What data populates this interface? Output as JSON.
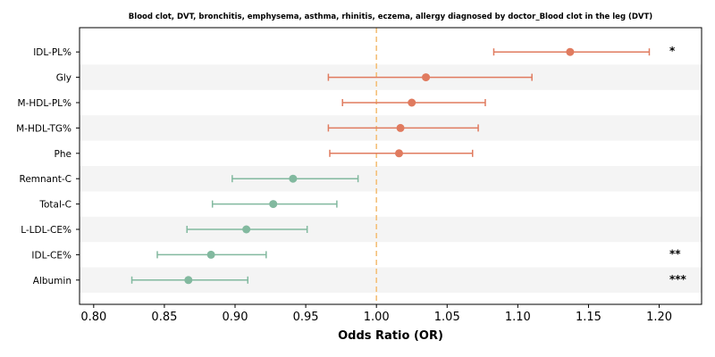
{
  "chart_data": {
    "type": "forest",
    "title": "Blood clot, DVT, bronchitis, emphysema, asthma, rhinitis, eczema, allergy diagnosed by doctor_Blood clot in the leg (DVT)",
    "xlabel": "Odds Ratio (OR)",
    "xlim": [
      0.79,
      1.23
    ],
    "xticks": [
      0.8,
      0.85,
      0.9,
      0.95,
      1.0,
      1.05,
      1.1,
      1.15,
      1.2
    ],
    "xtick_labels": [
      "0.80",
      "0.85",
      "0.90",
      "0.95",
      "1.00",
      "1.05",
      "1.10",
      "1.15",
      "1.20"
    ],
    "reference_line": 1.0,
    "colors": {
      "positive": "#e07b5f",
      "negative": "#82b99f",
      "reference": "#f4c07a",
      "band": "#f4f4f4"
    },
    "rows": [
      {
        "label": "IDL-PL%",
        "or": 1.137,
        "lower": 1.083,
        "upper": 1.193,
        "sig": "*"
      },
      {
        "label": "Gly",
        "or": 1.035,
        "lower": 0.966,
        "upper": 1.11,
        "sig": ""
      },
      {
        "label": "M-HDL-PL%",
        "or": 1.025,
        "lower": 0.976,
        "upper": 1.077,
        "sig": ""
      },
      {
        "label": "M-HDL-TG%",
        "or": 1.017,
        "lower": 0.966,
        "upper": 1.072,
        "sig": ""
      },
      {
        "label": "Phe",
        "or": 1.016,
        "lower": 0.967,
        "upper": 1.068,
        "sig": ""
      },
      {
        "label": "Remnant-C",
        "or": 0.941,
        "lower": 0.898,
        "upper": 0.987,
        "sig": ""
      },
      {
        "label": "Total-C",
        "or": 0.927,
        "lower": 0.884,
        "upper": 0.972,
        "sig": ""
      },
      {
        "label": "L-LDL-CE%",
        "or": 0.908,
        "lower": 0.866,
        "upper": 0.951,
        "sig": ""
      },
      {
        "label": "IDL-CE%",
        "or": 0.883,
        "lower": 0.845,
        "upper": 0.922,
        "sig": "**"
      },
      {
        "label": "Albumin",
        "or": 0.867,
        "lower": 0.827,
        "upper": 0.909,
        "sig": "***"
      }
    ]
  }
}
